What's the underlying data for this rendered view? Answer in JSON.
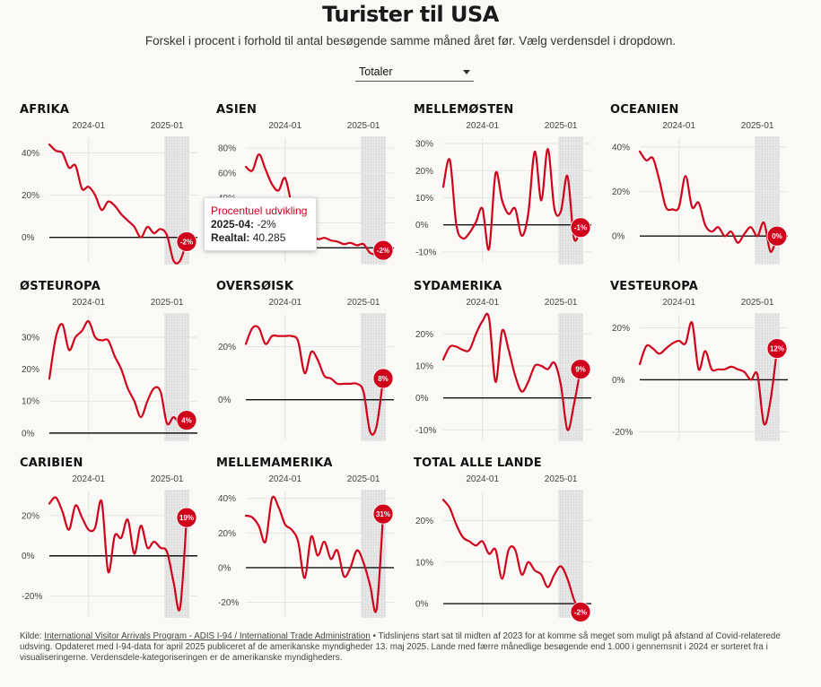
{
  "title": "Turister til USA",
  "subtitle": "Forskel i procent i forhold til antal besøgende samme måned året før. Vælg verdensdel i dropdown.",
  "dropdown": {
    "selected": "Totaler"
  },
  "tooltip": {
    "heading": "Procentuel udvikling",
    "date_label": "2025-04:",
    "date_value": "-2%",
    "count_label": "Realtal:",
    "count_value": "40.285"
  },
  "footer": {
    "prefix": "Kilde: ",
    "source": "International Visitor Arrivals Program - ADIS I-94 / International Trade Administration",
    "text": " • Tidslinjens start sat til midten af 2023 for at komme så meget som muligt på afstand af Covid-relaterede udsving. Opdateret med I-94-data for april 2025 publiceret af de amerikanske myndigheder 13. maj 2025. Lande med færre månedlige besøgende end 1.000 i gennemsnit i 2024 er sorteret fra i visualiseringerne. Verdensdele-kategoriseringen er de amerikanske myndigheders."
  },
  "colors": {
    "line": "#d0021b",
    "zero": "#111111",
    "grid": "#e4e4e4",
    "shade": "#cfcfcf"
  },
  "chart_data": [
    {
      "type": "line",
      "title": "AFRIKA",
      "x_ticks": [
        "2024-01",
        "2025-01"
      ],
      "ylim": [
        -12,
        47
      ],
      "y_ticks": [
        0,
        20,
        40
      ],
      "y_tick_labels": [
        "0%",
        "20%",
        "40%"
      ],
      "x": [
        "2023-07",
        "2023-08",
        "2023-09",
        "2023-10",
        "2023-11",
        "2023-12",
        "2024-01",
        "2024-02",
        "2024-03",
        "2024-04",
        "2024-05",
        "2024-06",
        "2024-07",
        "2024-08",
        "2024-09",
        "2024-10",
        "2024-11",
        "2024-12",
        "2025-01",
        "2025-02",
        "2025-03",
        "2025-04"
      ],
      "values": [
        44,
        41,
        40,
        33,
        34,
        23,
        24,
        20,
        13,
        17,
        15,
        11,
        8,
        5,
        0,
        5,
        2,
        4,
        1,
        -11,
        -11,
        -2
      ],
      "end_label": "-2%"
    },
    {
      "type": "line",
      "title": "ASIEN",
      "x_ticks": [
        "2024-01",
        "2025-01"
      ],
      "ylim": [
        -12,
        88
      ],
      "y_ticks": [
        0,
        20,
        40,
        60,
        80
      ],
      "y_tick_labels": [
        "0%",
        "20%",
        "40%",
        "60%",
        "80%"
      ],
      "x": [
        "2023-07",
        "2023-08",
        "2023-09",
        "2023-10",
        "2023-11",
        "2023-12",
        "2024-01",
        "2024-02",
        "2024-03",
        "2024-04",
        "2024-05",
        "2024-06",
        "2024-07",
        "2024-08",
        "2024-09",
        "2024-10",
        "2024-11",
        "2024-12",
        "2025-01",
        "2025-02",
        "2025-03",
        "2025-04"
      ],
      "values": [
        65,
        62,
        75,
        63,
        51,
        46,
        56,
        35,
        22,
        20,
        12,
        7,
        8,
        6,
        5,
        3,
        4,
        2,
        3,
        -4,
        -5,
        -2
      ],
      "end_label": "-2%"
    },
    {
      "type": "line",
      "title": "MELLEMØSTEN",
      "x_ticks": [
        "2024-01",
        "2025-01"
      ],
      "ylim": [
        -14,
        32
      ],
      "y_ticks": [
        -10,
        0,
        10,
        20,
        30
      ],
      "y_tick_labels": [
        "-10%",
        "0%",
        "10%",
        "20%",
        "30%"
      ],
      "x": [
        "2023-07",
        "2023-08",
        "2023-09",
        "2023-10",
        "2023-11",
        "2023-12",
        "2024-01",
        "2024-02",
        "2024-03",
        "2024-04",
        "2024-05",
        "2024-06",
        "2024-07",
        "2024-08",
        "2024-09",
        "2024-10",
        "2024-11",
        "2024-12",
        "2025-01",
        "2025-02",
        "2025-03",
        "2025-04"
      ],
      "values": [
        14,
        24,
        0,
        -5,
        -3,
        1,
        6,
        -9,
        19,
        9,
        4,
        6,
        -4,
        4,
        27,
        9,
        28,
        6,
        5,
        18,
        -5,
        -1
      ],
      "end_label": "-1%"
    },
    {
      "type": "line",
      "title": "OCEANIEN",
      "x_ticks": [
        "2024-01",
        "2025-01"
      ],
      "ylim": [
        -12,
        44
      ],
      "y_ticks": [
        0,
        20,
        40
      ],
      "y_tick_labels": [
        "0%",
        "20%",
        "40%"
      ],
      "x": [
        "2023-07",
        "2023-08",
        "2023-09",
        "2023-10",
        "2023-11",
        "2023-12",
        "2024-01",
        "2024-02",
        "2024-03",
        "2024-04",
        "2024-05",
        "2024-06",
        "2024-07",
        "2024-08",
        "2024-09",
        "2024-10",
        "2024-11",
        "2024-12",
        "2025-01",
        "2025-02",
        "2025-03",
        "2025-04"
      ],
      "values": [
        38,
        34,
        35,
        25,
        13,
        12,
        13,
        27,
        13,
        15,
        5,
        2,
        4,
        0,
        2,
        -3,
        1,
        4,
        0,
        6,
        -7,
        0
      ],
      "end_label": "0%"
    },
    {
      "type": "line",
      "title": "ØSTEUROPA",
      "x_ticks": [
        "2024-01",
        "2025-01"
      ],
      "ylim": [
        -2,
        37
      ],
      "y_ticks": [
        0,
        10,
        20,
        30
      ],
      "y_tick_labels": [
        "0%",
        "10%",
        "20%",
        "30%"
      ],
      "x": [
        "2023-07",
        "2023-08",
        "2023-09",
        "2023-10",
        "2023-11",
        "2023-12",
        "2024-01",
        "2024-02",
        "2024-03",
        "2024-04",
        "2024-05",
        "2024-06",
        "2024-07",
        "2024-08",
        "2024-09",
        "2024-10",
        "2024-11",
        "2024-12",
        "2025-01",
        "2025-02",
        "2025-03",
        "2025-04"
      ],
      "values": [
        17,
        30,
        34,
        26,
        30,
        32,
        35,
        30,
        29,
        29,
        24,
        20,
        14,
        10,
        5,
        10,
        14,
        13,
        3,
        5,
        3,
        4
      ],
      "end_label": "4%"
    },
    {
      "type": "line",
      "title": "OVERSØISK",
      "x_ticks": [
        "2024-01",
        "2025-01"
      ],
      "ylim": [
        -15,
        32
      ],
      "y_ticks": [
        0,
        20
      ],
      "y_tick_labels": [
        "0%",
        "20%"
      ],
      "x": [
        "2023-07",
        "2023-08",
        "2023-09",
        "2023-10",
        "2023-11",
        "2023-12",
        "2024-01",
        "2024-02",
        "2024-03",
        "2024-04",
        "2024-05",
        "2024-06",
        "2024-07",
        "2024-08",
        "2024-09",
        "2024-10",
        "2024-11",
        "2024-12",
        "2025-01",
        "2025-02",
        "2025-03",
        "2025-04"
      ],
      "values": [
        21,
        27,
        27,
        21,
        24,
        24,
        24,
        24,
        22,
        10,
        18,
        15,
        9,
        8,
        6,
        6,
        6,
        6,
        3,
        -12,
        -10,
        8
      ],
      "end_label": "8%"
    },
    {
      "type": "line",
      "title": "SYDAMERIKA",
      "x_ticks": [
        "2024-01",
        "2025-01"
      ],
      "ylim": [
        -13,
        26
      ],
      "y_ticks": [
        -10,
        0,
        10,
        20
      ],
      "y_tick_labels": [
        "-10%",
        "0%",
        "10%",
        "20%"
      ],
      "x": [
        "2023-07",
        "2023-08",
        "2023-09",
        "2023-10",
        "2023-11",
        "2023-12",
        "2024-01",
        "2024-02",
        "2024-03",
        "2024-04",
        "2024-05",
        "2024-06",
        "2024-07",
        "2024-08",
        "2024-09",
        "2024-10",
        "2024-11",
        "2024-12",
        "2025-01",
        "2025-02",
        "2025-03",
        "2025-04"
      ],
      "values": [
        12,
        16,
        16,
        15,
        15,
        20,
        24,
        25,
        5,
        21,
        15,
        7,
        2,
        5,
        10,
        10,
        9,
        11,
        4,
        -10,
        -2,
        9
      ],
      "end_label": "9%"
    },
    {
      "type": "line",
      "title": "VESTEUROPA",
      "x_ticks": [
        "2024-01",
        "2025-01"
      ],
      "ylim": [
        -23,
        25
      ],
      "y_ticks": [
        -20,
        0,
        20
      ],
      "y_tick_labels": [
        "-20%",
        "0%",
        "20%"
      ],
      "x": [
        "2023-07",
        "2023-08",
        "2023-09",
        "2023-10",
        "2023-11",
        "2023-12",
        "2024-01",
        "2024-02",
        "2024-03",
        "2024-04",
        "2024-05",
        "2024-06",
        "2024-07",
        "2024-08",
        "2024-09",
        "2024-10",
        "2024-11",
        "2024-12",
        "2025-01",
        "2025-02",
        "2025-03",
        "2025-04"
      ],
      "values": [
        6,
        13,
        12,
        10,
        12,
        14,
        15,
        14,
        22,
        4,
        11,
        4,
        4,
        4,
        5,
        4,
        3,
        0,
        2,
        -17,
        -8,
        12
      ],
      "end_label": "12%"
    },
    {
      "type": "line",
      "title": "CARIBIEN",
      "x_ticks": [
        "2024-01",
        "2025-01"
      ],
      "ylim": [
        -30,
        32
      ],
      "y_ticks": [
        -20,
        0,
        20
      ],
      "y_tick_labels": [
        "-20%",
        "0%",
        "20%"
      ],
      "x": [
        "2023-07",
        "2023-08",
        "2023-09",
        "2023-10",
        "2023-11",
        "2023-12",
        "2024-01",
        "2024-02",
        "2024-03",
        "2024-04",
        "2024-05",
        "2024-06",
        "2024-07",
        "2024-08",
        "2024-09",
        "2024-10",
        "2024-11",
        "2024-12",
        "2025-01",
        "2025-02",
        "2025-03",
        "2025-04"
      ],
      "values": [
        26,
        29,
        22,
        13,
        25,
        19,
        13,
        14,
        27,
        -8,
        10,
        9,
        18,
        1,
        15,
        4,
        7,
        4,
        2,
        -13,
        -26,
        19
      ],
      "end_label": "19%"
    },
    {
      "type": "line",
      "title": "MELLEMAMERIKA",
      "x_ticks": [
        "2024-01",
        "2025-01"
      ],
      "ylim": [
        -28,
        44
      ],
      "y_ticks": [
        -20,
        0,
        20,
        40
      ],
      "y_tick_labels": [
        "-20%",
        "0%",
        "20%",
        "40%"
      ],
      "x": [
        "2023-07",
        "2023-08",
        "2023-09",
        "2023-10",
        "2023-11",
        "2023-12",
        "2024-01",
        "2024-02",
        "2024-03",
        "2024-04",
        "2024-05",
        "2024-06",
        "2024-07",
        "2024-08",
        "2024-09",
        "2024-10",
        "2024-11",
        "2024-12",
        "2025-01",
        "2025-02",
        "2025-03",
        "2025-04"
      ],
      "values": [
        30,
        29,
        24,
        15,
        40,
        35,
        25,
        22,
        15,
        -6,
        18,
        7,
        15,
        5,
        10,
        -5,
        0,
        10,
        3,
        -10,
        -24,
        31
      ],
      "end_label": "31%"
    },
    {
      "type": "line",
      "title": "TOTAL ALLE LANDE",
      "x_ticks": [
        "2024-01",
        "2025-01"
      ],
      "ylim": [
        -3,
        27
      ],
      "y_ticks": [
        0,
        10,
        20
      ],
      "y_tick_labels": [
        "0%",
        "10%",
        "20%"
      ],
      "x": [
        "2023-07",
        "2023-08",
        "2023-09",
        "2023-10",
        "2023-11",
        "2023-12",
        "2024-01",
        "2024-02",
        "2024-03",
        "2024-04",
        "2024-05",
        "2024-06",
        "2024-07",
        "2024-08",
        "2024-09",
        "2024-10",
        "2024-11",
        "2024-12",
        "2025-01",
        "2025-02",
        "2025-03",
        "2025-04"
      ],
      "values": [
        25,
        23,
        19,
        16,
        15,
        14,
        15,
        12,
        13,
        6,
        13,
        13,
        7,
        10,
        8,
        7,
        4,
        7,
        9,
        6,
        1,
        -2
      ],
      "end_label": "-2%"
    }
  ]
}
